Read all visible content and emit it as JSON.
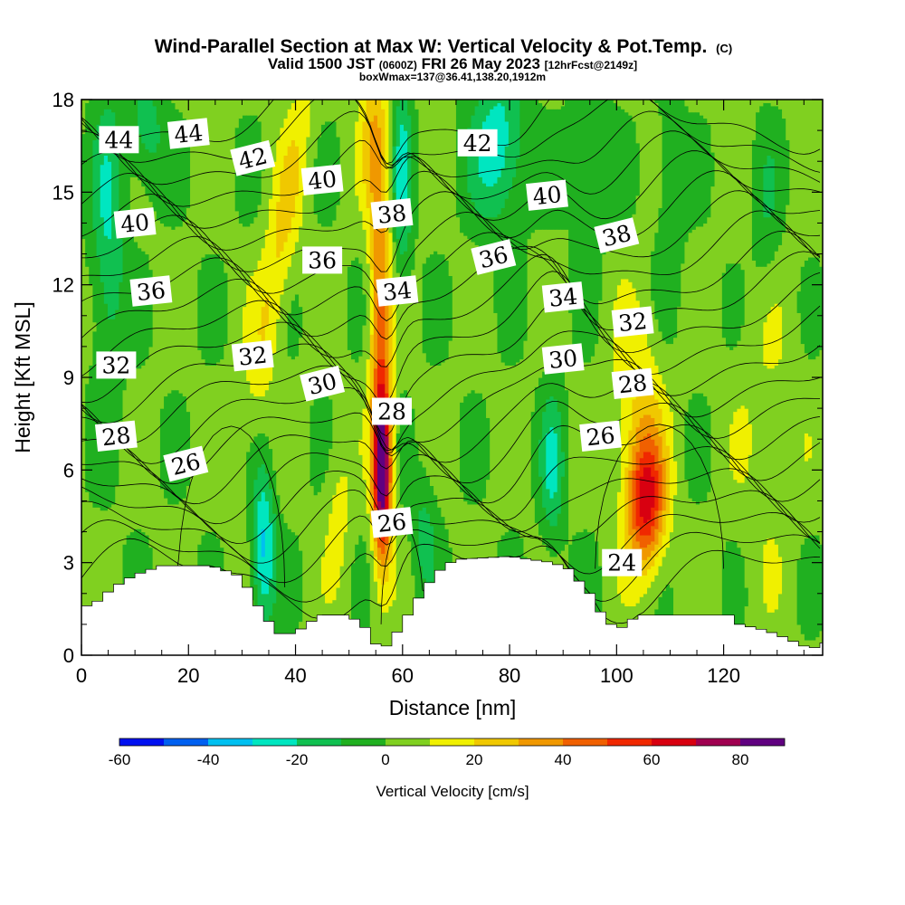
{
  "title": {
    "main": "Wind-Parallel Section at Max W: Vertical Velocity & Pot.Temp.",
    "main_tag": "(C)",
    "valid": "Valid 1500 JST",
    "valid_z": "(0600Z)",
    "valid_date": "FRI 26 May 2023",
    "fcst": "[12hrFcst@2149z]",
    "box": "boxWmax=137@36.41,138.20,1912m"
  },
  "chart_data": {
    "type": "heatmap",
    "xlabel": "Distance [nm]",
    "ylabel": "Height [Kft MSL]",
    "xlim": [
      0,
      138.5
    ],
    "ylim": [
      0,
      18
    ],
    "x_ticks": [
      0,
      20,
      40,
      60,
      80,
      100,
      120
    ],
    "y_ticks": [
      0,
      3,
      6,
      9,
      12,
      15,
      18
    ],
    "colorbar": {
      "label": "Vertical Velocity [cm/s]",
      "range": [
        -60,
        90
      ],
      "step": 10,
      "tick_values": [
        -60,
        -40,
        -20,
        0,
        20,
        40,
        60,
        80
      ],
      "colors": [
        "#0010f0",
        "#0060f0",
        "#00c0f0",
        "#00e6c0",
        "#10c050",
        "#20b020",
        "#80d020",
        "#f0f000",
        "#f0c800",
        "#f09800",
        "#f06000",
        "#f02800",
        "#d80010",
        "#a00050",
        "#600080"
      ]
    },
    "terrain_kft": [
      [
        0,
        1.6
      ],
      [
        2,
        1.6
      ],
      [
        4,
        1.9
      ],
      [
        6,
        2.2
      ],
      [
        10,
        2.6
      ],
      [
        15,
        2.9
      ],
      [
        20,
        2.9
      ],
      [
        24,
        2.9
      ],
      [
        26,
        2.8
      ],
      [
        29,
        2.6
      ],
      [
        31,
        2.2
      ],
      [
        33,
        1.6
      ],
      [
        35,
        1.1
      ],
      [
        37,
        0.7
      ],
      [
        40,
        0.7
      ],
      [
        42,
        1.0
      ],
      [
        45,
        1.3
      ],
      [
        48,
        1.3
      ],
      [
        50,
        1.3
      ],
      [
        53,
        0.9
      ],
      [
        54,
        0.4
      ],
      [
        57,
        0.3
      ],
      [
        58,
        0.5
      ],
      [
        60,
        1.0
      ],
      [
        62,
        1.6
      ],
      [
        64,
        2.1
      ],
      [
        66,
        2.6
      ],
      [
        68,
        2.9
      ],
      [
        70,
        3.1
      ],
      [
        80,
        3.2
      ],
      [
        88,
        3.0
      ],
      [
        91,
        2.8
      ],
      [
        93,
        2.4
      ],
      [
        95,
        2.0
      ],
      [
        97,
        1.4
      ],
      [
        99,
        1.0
      ],
      [
        101,
        0.9
      ],
      [
        104,
        1.3
      ],
      [
        115,
        1.3
      ],
      [
        121,
        1.3
      ],
      [
        123,
        1.0
      ],
      [
        128,
        0.8
      ],
      [
        131,
        0.6
      ],
      [
        135,
        0.3
      ],
      [
        136,
        0.1
      ],
      [
        138,
        0.4
      ]
    ],
    "updrafts": [
      {
        "x": 56.2,
        "z": 6.0,
        "peak": 90
      },
      {
        "x": 105.5,
        "z": 5.5,
        "peak": 62
      },
      {
        "x": 36.0,
        "z": 13.0,
        "peak": 20
      }
    ],
    "downdrafts": [
      {
        "x": 34.0,
        "z": 3.5,
        "peak": -35
      },
      {
        "x": 88.0,
        "z": 6.0,
        "peak": -22
      },
      {
        "x": 78.0,
        "z": 16.5,
        "peak": -30
      }
    ],
    "theta_levels": [
      24,
      26,
      28,
      30,
      32,
      34,
      36,
      38,
      40,
      42,
      44
    ],
    "contour_labels": [
      {
        "text": "44",
        "x": 7.0,
        "z": 16.7
      },
      {
        "text": "44",
        "x": 20.0,
        "z": 16.9
      },
      {
        "text": "42",
        "x": 32.0,
        "z": 16.1
      },
      {
        "text": "40",
        "x": 45.0,
        "z": 15.4
      },
      {
        "text": "38",
        "x": 58.0,
        "z": 14.3
      },
      {
        "text": "42",
        "x": 74.0,
        "z": 16.6
      },
      {
        "text": "40",
        "x": 87.0,
        "z": 14.9
      },
      {
        "text": "38",
        "x": 100.0,
        "z": 13.6
      },
      {
        "text": "40",
        "x": 10.0,
        "z": 14.0
      },
      {
        "text": "36",
        "x": 13.0,
        "z": 11.8
      },
      {
        "text": "36",
        "x": 45.0,
        "z": 12.8
      },
      {
        "text": "34",
        "x": 59.0,
        "z": 11.8
      },
      {
        "text": "36",
        "x": 77.0,
        "z": 12.9
      },
      {
        "text": "34",
        "x": 90.0,
        "z": 11.6
      },
      {
        "text": "32",
        "x": 103.0,
        "z": 10.8
      },
      {
        "text": "32",
        "x": 6.5,
        "z": 9.4
      },
      {
        "text": "32",
        "x": 32.0,
        "z": 9.7
      },
      {
        "text": "30",
        "x": 45.0,
        "z": 8.8
      },
      {
        "text": "30",
        "x": 90.0,
        "z": 9.6
      },
      {
        "text": "28",
        "x": 103.0,
        "z": 8.8
      },
      {
        "text": "28",
        "x": 58.0,
        "z": 7.9
      },
      {
        "text": "28",
        "x": 6.5,
        "z": 7.1
      },
      {
        "text": "26",
        "x": 19.5,
        "z": 6.2
      },
      {
        "text": "26",
        "x": 97.0,
        "z": 7.1
      },
      {
        "text": "26",
        "x": 58.0,
        "z": 4.3
      },
      {
        "text": "24",
        "x": 101.0,
        "z": 3.0
      }
    ]
  }
}
